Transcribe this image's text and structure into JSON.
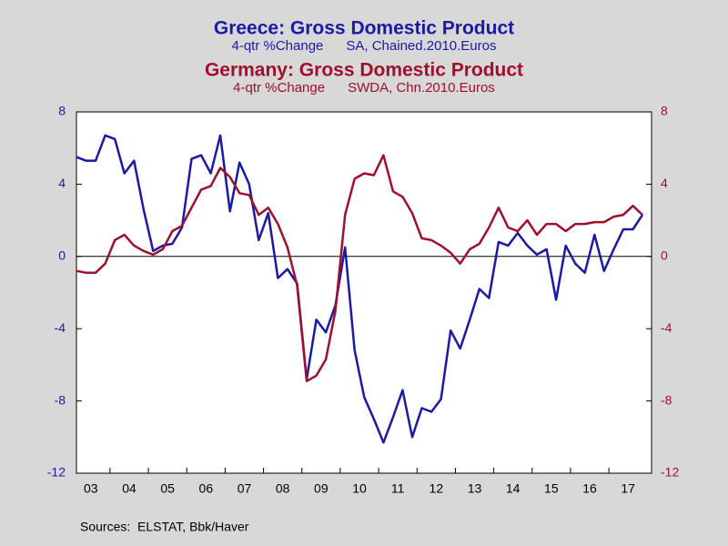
{
  "chart_data": {
    "type": "line",
    "titles": [
      {
        "text": "Greece: Gross Domestic Product",
        "subtitle": "4-qtr %Change      SA, Chained.2010.Euros",
        "color": "#1a1aa6"
      },
      {
        "text": "Germany: Gross Domestic Product",
        "subtitle": "4-qtr %Change      SWDA, Chn.2010.Euros",
        "color": "#a0102a"
      }
    ],
    "source": "Sources:  ELSTAT, Bbk/Haver",
    "categories": [
      null,
      "03",
      null,
      null,
      null,
      "04",
      null,
      null,
      null,
      "05",
      null,
      null,
      null,
      "06",
      null,
      null,
      null,
      "07",
      null,
      null,
      null,
      "08",
      null,
      null,
      null,
      "09",
      null,
      null,
      null,
      "10",
      null,
      null,
      null,
      "11",
      null,
      null,
      null,
      "12",
      null,
      null,
      null,
      "13",
      null,
      null,
      null,
      "14",
      null,
      null,
      null,
      "15",
      null,
      null,
      null,
      "16",
      null,
      null,
      null,
      "17",
      null,
      null
    ],
    "series": [
      {
        "name": "Greece",
        "color": "#1a1aa6",
        "axis": "y",
        "values": [
          5.5,
          5.3,
          5.3,
          6.7,
          6.5,
          4.6,
          5.3,
          2.6,
          0.3,
          0.6,
          0.7,
          1.6,
          5.4,
          5.6,
          4.6,
          6.7,
          2.5,
          5.2,
          4.0,
          0.9,
          2.4,
          -1.2,
          -0.7,
          -1.5,
          -6.8,
          -3.5,
          -4.2,
          -2.7,
          0.5,
          -5.2,
          -7.8,
          -9.0,
          -10.3,
          -8.9,
          -7.4,
          -10.0,
          -8.4,
          -8.6,
          -7.9,
          -4.1,
          -5.1,
          -3.5,
          -1.8,
          -2.3,
          0.8,
          0.6,
          1.3,
          0.6,
          0.1,
          0.4,
          -2.4,
          0.6,
          -0.4,
          -0.9,
          1.2,
          -0.8,
          0.4,
          1.5,
          1.5,
          2.3
        ]
      },
      {
        "name": "Germany",
        "color": "#a0102a",
        "axis": "y2",
        "values": [
          -0.8,
          -0.9,
          -0.9,
          -0.4,
          0.9,
          1.2,
          0.6,
          0.3,
          0.1,
          0.4,
          1.4,
          1.7,
          2.7,
          3.7,
          3.9,
          4.9,
          4.4,
          3.5,
          3.4,
          2.3,
          2.7,
          1.8,
          0.5,
          -1.6,
          -6.9,
          -6.6,
          -5.7,
          -3.0,
          2.3,
          4.3,
          4.6,
          4.5,
          5.6,
          3.6,
          3.3,
          2.4,
          1.0,
          0.9,
          0.6,
          0.2,
          -0.4,
          0.4,
          0.7,
          1.6,
          2.7,
          1.6,
          1.4,
          2.0,
          1.2,
          1.8,
          1.8,
          1.4,
          1.8,
          1.8,
          1.9,
          1.9,
          2.2,
          2.3,
          2.8,
          2.3
        ]
      }
    ],
    "ylim": [
      -12,
      8
    ],
    "yticks": [
      -12,
      -8,
      -4,
      0,
      4,
      8
    ],
    "y2lim": [
      -12,
      8
    ],
    "y2ticks": [
      -12,
      -8,
      -4,
      0,
      4,
      8
    ]
  }
}
